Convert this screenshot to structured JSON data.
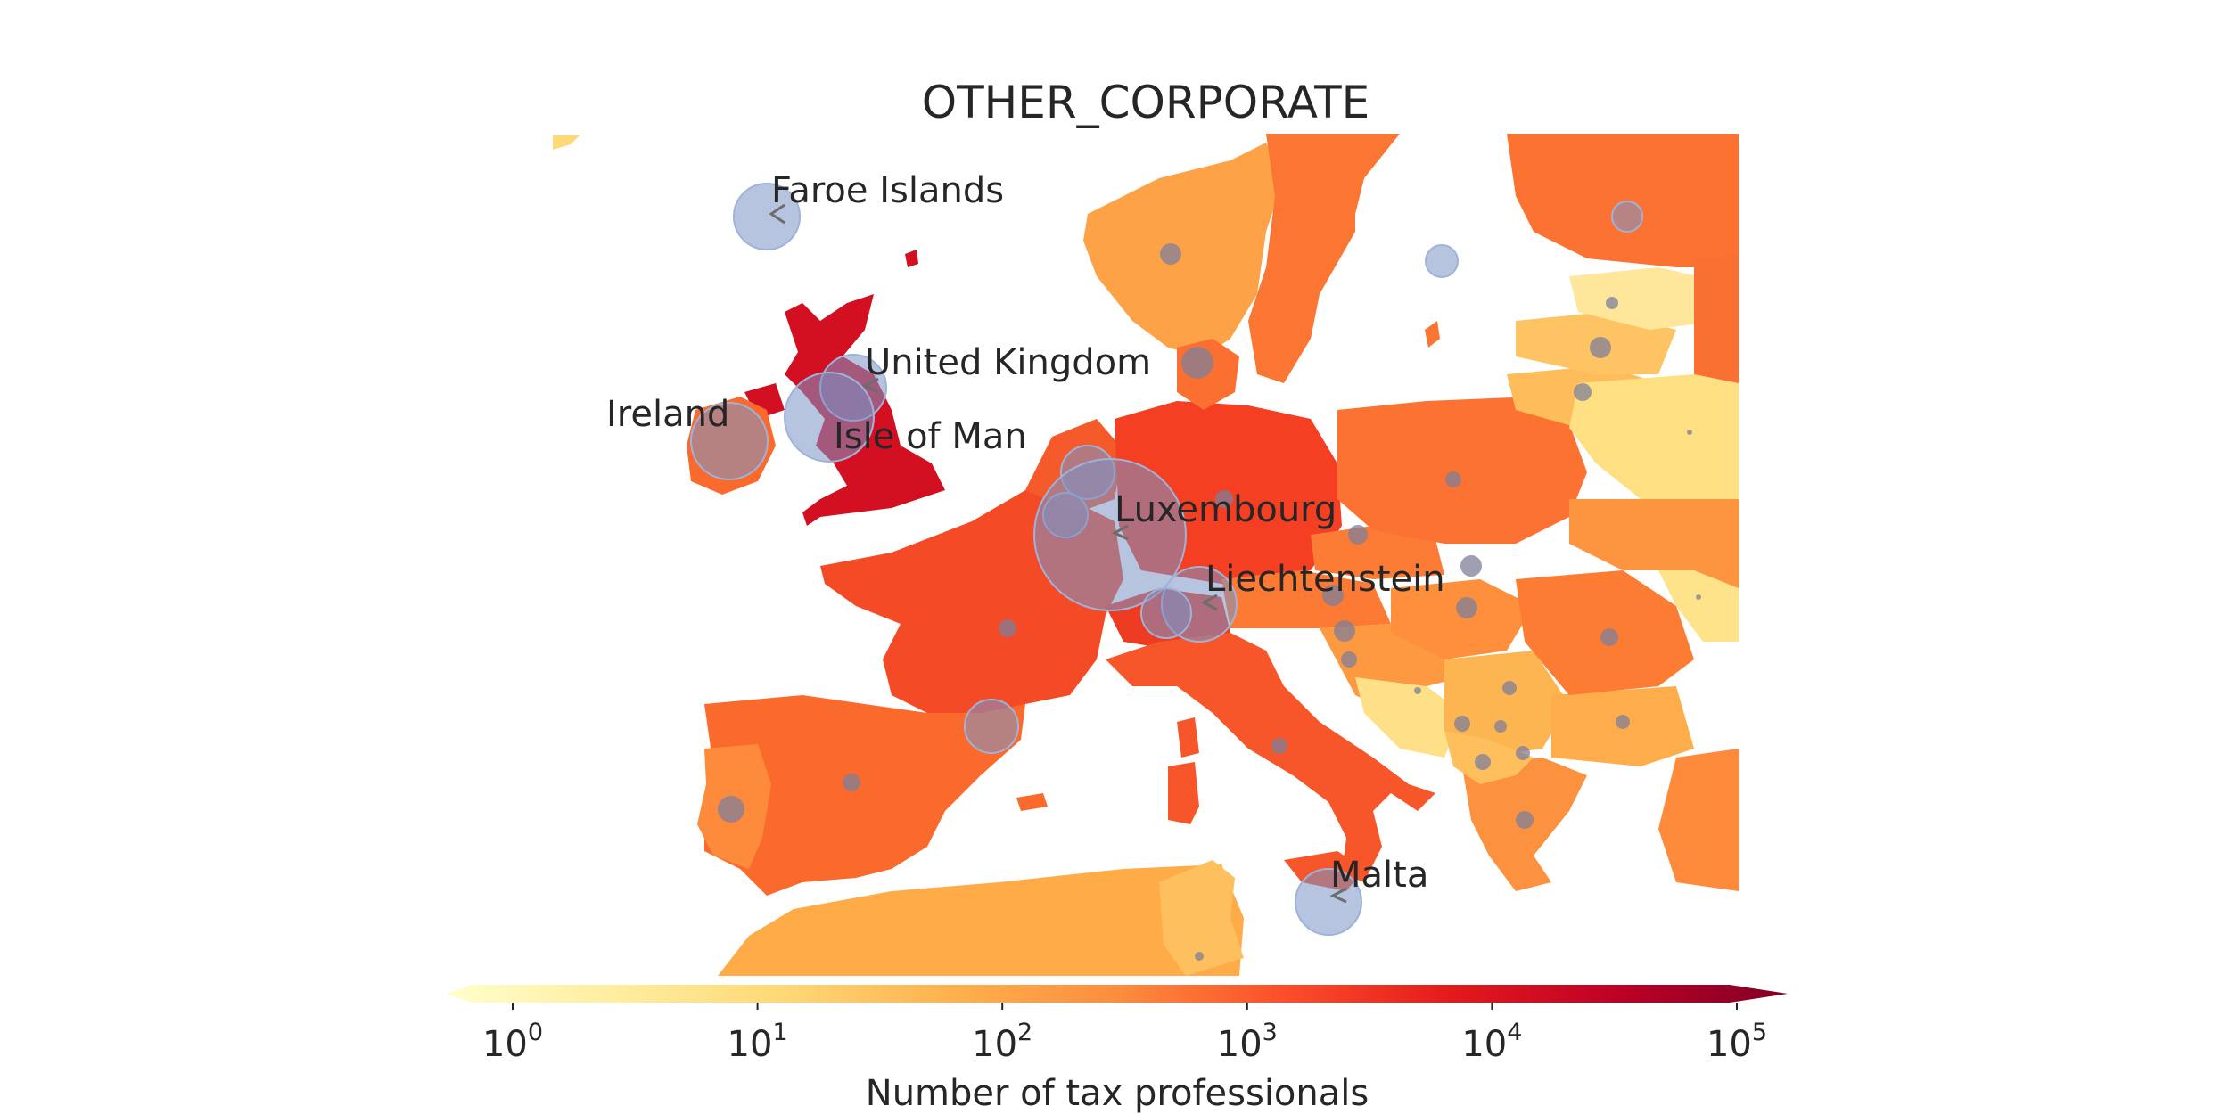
{
  "title": "OTHER_CORPORATE",
  "colorbar": {
    "label": "Number of tax professionals",
    "colormap": "YlOrRd",
    "scale": "log",
    "range": [
      1,
      100000
    ],
    "ticks": [
      {
        "base": "10",
        "exp": "0"
      },
      {
        "base": "10",
        "exp": "1"
      },
      {
        "base": "10",
        "exp": "2"
      },
      {
        "base": "10",
        "exp": "3"
      },
      {
        "base": "10",
        "exp": "4"
      },
      {
        "base": "10",
        "exp": "5"
      }
    ]
  },
  "labels": {
    "faroe": "Faroe Islands",
    "uk": "United Kingdom",
    "ireland": "Ireland",
    "iom": "Isle of Man",
    "luxembourg": "Luxembourg",
    "liechtenstein": "Liechtenstein",
    "malta": "Malta"
  },
  "colors": {
    "cmap": [
      "#ffffcc",
      "#ffeda0",
      "#fed976",
      "#feb24c",
      "#fd8d3c",
      "#fc4e2a",
      "#e31a1c",
      "#bd0026",
      "#800026"
    ],
    "bubble": "#7b93c6",
    "uk": "#d21022",
    "france": "#f44a26",
    "spain": "#fb6a2d"
  }
}
